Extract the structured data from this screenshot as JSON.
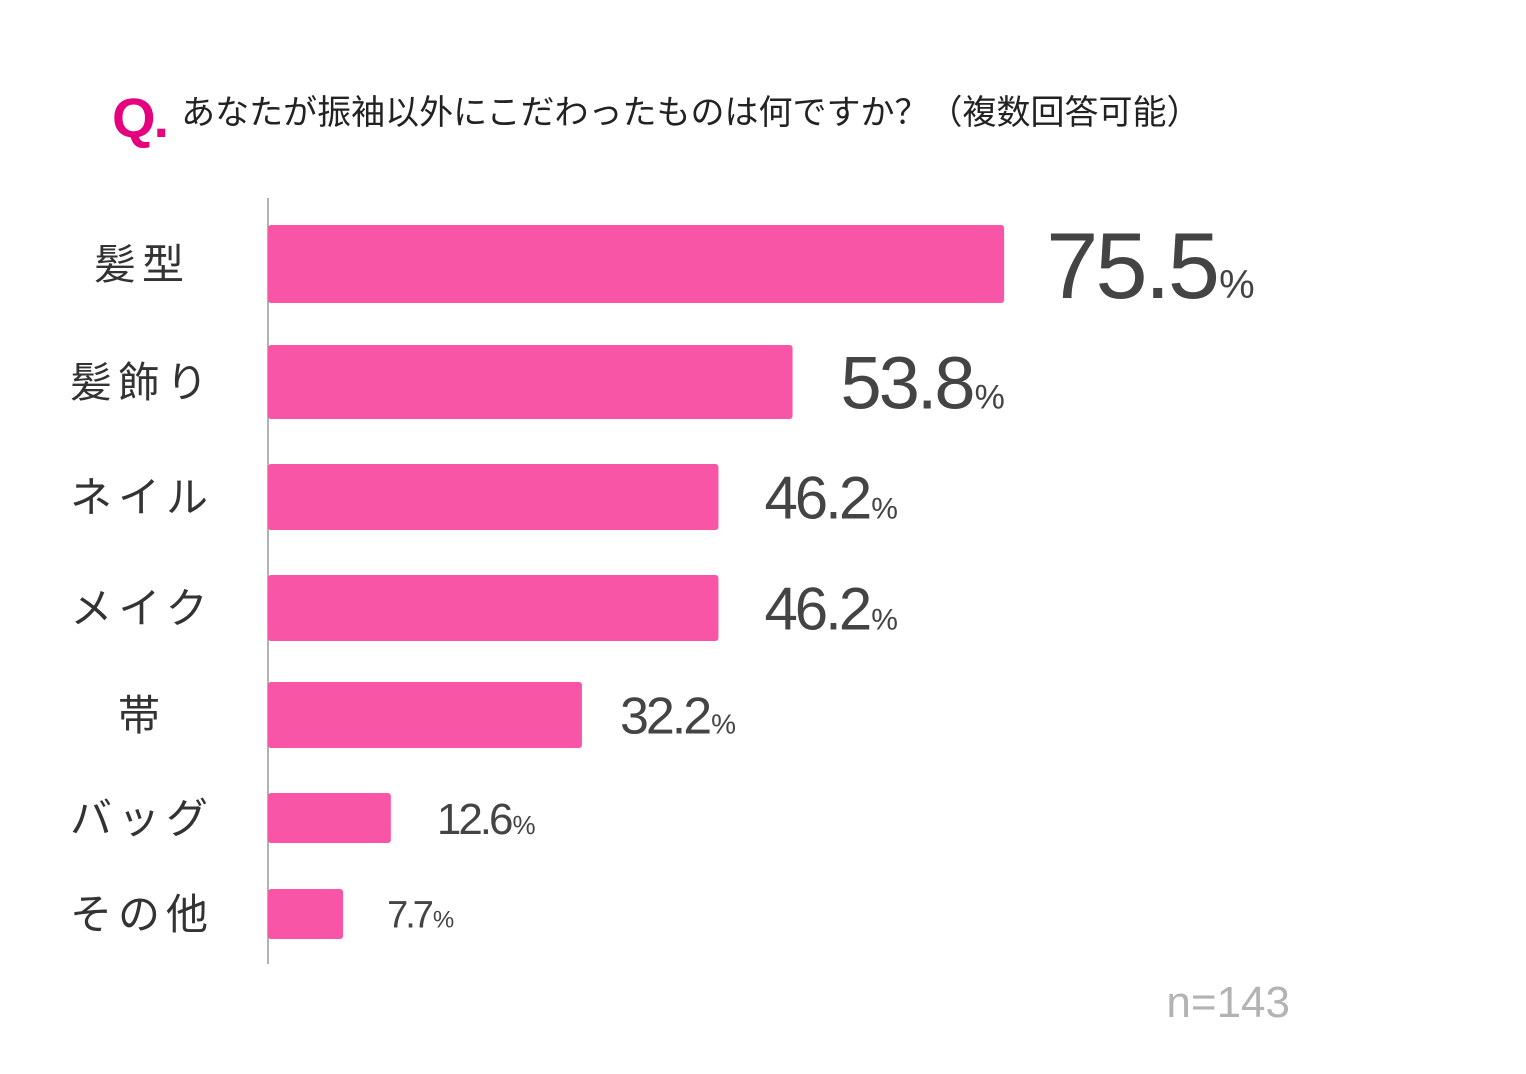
{
  "question": {
    "mark": "Q.",
    "text": "あなたが振袖以外にこだわったものは何ですか？（複数回答可能）"
  },
  "colors": {
    "accent": "#e6007e",
    "bar": "#f955a6",
    "value_text": "#444444",
    "category_text": "#333333",
    "axis": "#999999",
    "sample_text": "#b3b3b3"
  },
  "sample_size": "n=143",
  "chart_data": {
    "type": "bar",
    "orientation": "horizontal",
    "title": "あなたが振袖以外にこだわったものは何ですか？（複数回答可能）",
    "categories": [
      "髪型",
      "髪飾り",
      "ネイル",
      "メイク",
      "帯",
      "バッグ",
      "その他"
    ],
    "values": [
      75.5,
      53.8,
      46.2,
      46.2,
      32.2,
      12.6,
      7.7
    ],
    "value_labels": [
      "75.5",
      "53.8",
      "46.2",
      "46.2",
      "32.2",
      "12.6",
      "7.7"
    ],
    "unit": "%",
    "xlim": [
      0,
      100
    ],
    "grid": false,
    "legend": "none",
    "note": "n=143"
  }
}
